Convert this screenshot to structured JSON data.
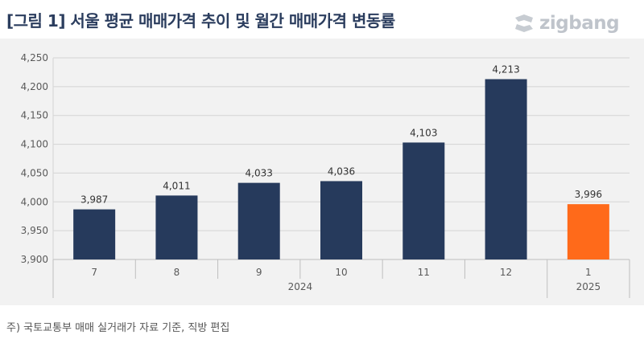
{
  "header": {
    "title": "[그림 1] 서울 평균 매매가격 추이 및 월간 매매가격 변동률",
    "logo_text": "zigbang"
  },
  "footnote": "주) 국토교통부 매매 실거래가 자료 기준, 직방 편집",
  "chart_data": {
    "type": "bar",
    "title": "[그림 1] 서울 평균 매매가격 추이 및 월간 매매가격 변동률",
    "xlabel": "",
    "ylabel": "",
    "ylim": [
      3900,
      4250
    ],
    "yticks": [
      "3,900",
      "3,950",
      "4,000",
      "4,050",
      "4,100",
      "4,150",
      "4,200",
      "4,250"
    ],
    "grid": true,
    "categories": [
      "7",
      "8",
      "9",
      "10",
      "11",
      "12",
      "1"
    ],
    "values": [
      3987,
      4011,
      4033,
      4036,
      4103,
      4213,
      3996
    ],
    "data_labels": [
      "3,987",
      "4,011",
      "4,033",
      "4,036",
      "4,103",
      "4,213",
      "3,996"
    ],
    "year_groups": [
      {
        "label": "2024",
        "categories": [
          "7",
          "8",
          "9",
          "10",
          "11",
          "12"
        ]
      },
      {
        "label": "2025",
        "categories": [
          "1"
        ]
      }
    ],
    "colors": {
      "default_bar": "#263a5c",
      "highlight_bar": "#ff6a1a",
      "grid": "#d4d4d4",
      "background": "#f2f2f2",
      "axis_text": "#595959",
      "title": "#2b3d5e"
    },
    "highlight_index": 6
  }
}
